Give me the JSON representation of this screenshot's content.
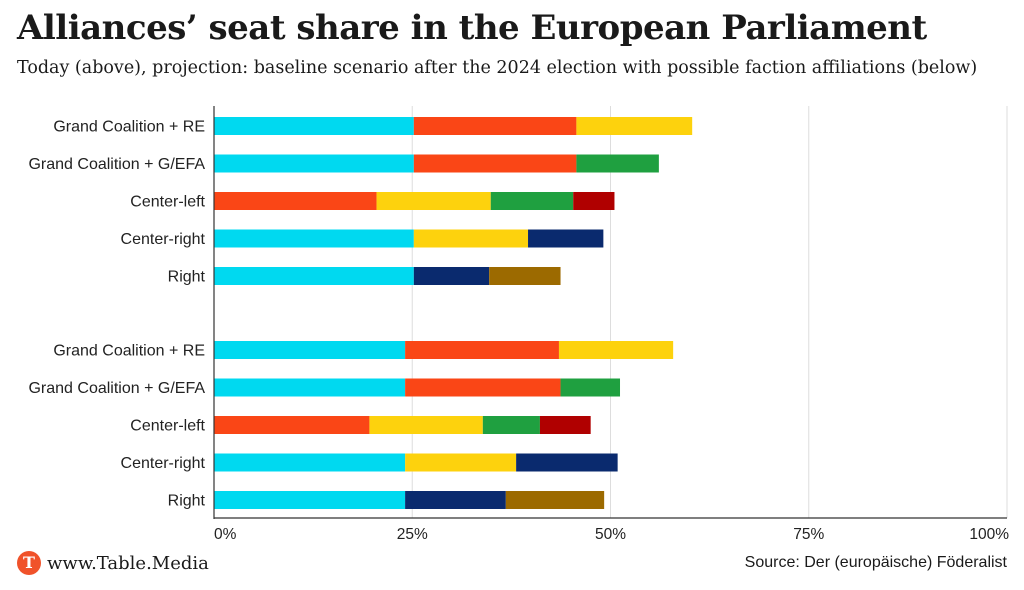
{
  "title": "Alliances’ seat share in the European Parliament",
  "subtitle": "Today (above), projection: baseline scenario after the 2024 election with possible faction affiliations (below)",
  "footer": {
    "logo_letter": "T",
    "site": "www.Table.Media",
    "source": "Source: Der (europäische) Föderalist"
  },
  "colors": {
    "cyan": "#00d9f0",
    "red": "#fa4616",
    "yellow": "#fdd20d",
    "green": "#1fa040",
    "darkred": "#b00000",
    "navy": "#0a2a6e",
    "brown": "#9c6a00",
    "grid": "#dddddd",
    "axis": "#333333"
  },
  "chart_data": {
    "type": "bar",
    "orientation": "horizontal",
    "stacked": true,
    "xlim": [
      0,
      100
    ],
    "xticks": [
      "0%",
      "25%",
      "50%",
      "75%",
      "100%"
    ],
    "grid": true,
    "groups": [
      {
        "rows": [
          {
            "label": "Grand Coalition + RE",
            "segments": [
              {
                "value": 25.2,
                "color": "cyan"
              },
              {
                "value": 20.5,
                "color": "red"
              },
              {
                "value": 14.6,
                "color": "yellow"
              }
            ]
          },
          {
            "label": "Grand Coalition + G/EFA",
            "segments": [
              {
                "value": 25.2,
                "color": "cyan"
              },
              {
                "value": 20.5,
                "color": "red"
              },
              {
                "value": 10.4,
                "color": "green"
              }
            ]
          },
          {
            "label": "Center-left",
            "segments": [
              {
                "value": 20.5,
                "color": "red"
              },
              {
                "value": 14.4,
                "color": "yellow"
              },
              {
                "value": 10.4,
                "color": "green"
              },
              {
                "value": 5.2,
                "color": "darkred"
              }
            ]
          },
          {
            "label": "Center-right",
            "segments": [
              {
                "value": 25.2,
                "color": "cyan"
              },
              {
                "value": 14.4,
                "color": "yellow"
              },
              {
                "value": 9.5,
                "color": "navy"
              }
            ]
          },
          {
            "label": "Right",
            "segments": [
              {
                "value": 25.2,
                "color": "cyan"
              },
              {
                "value": 9.5,
                "color": "navy"
              },
              {
                "value": 9.0,
                "color": "brown"
              }
            ]
          }
        ]
      },
      {
        "rows": [
          {
            "label": "Grand Coalition + RE",
            "segments": [
              {
                "value": 24.1,
                "color": "cyan"
              },
              {
                "value": 19.4,
                "color": "red"
              },
              {
                "value": 14.4,
                "color": "yellow"
              }
            ]
          },
          {
            "label": "Grand Coalition + G/EFA",
            "segments": [
              {
                "value": 24.1,
                "color": "cyan"
              },
              {
                "value": 19.6,
                "color": "red"
              },
              {
                "value": 7.5,
                "color": "green"
              }
            ]
          },
          {
            "label": "Center-left",
            "segments": [
              {
                "value": 19.6,
                "color": "red"
              },
              {
                "value": 14.3,
                "color": "yellow"
              },
              {
                "value": 7.2,
                "color": "green"
              },
              {
                "value": 6.4,
                "color": "darkred"
              }
            ]
          },
          {
            "label": "Center-right",
            "segments": [
              {
                "value": 24.1,
                "color": "cyan"
              },
              {
                "value": 14.0,
                "color": "yellow"
              },
              {
                "value": 12.8,
                "color": "navy"
              }
            ]
          },
          {
            "label": "Right",
            "segments": [
              {
                "value": 24.1,
                "color": "cyan"
              },
              {
                "value": 12.7,
                "color": "navy"
              },
              {
                "value": 12.4,
                "color": "brown"
              }
            ]
          }
        ]
      }
    ]
  }
}
